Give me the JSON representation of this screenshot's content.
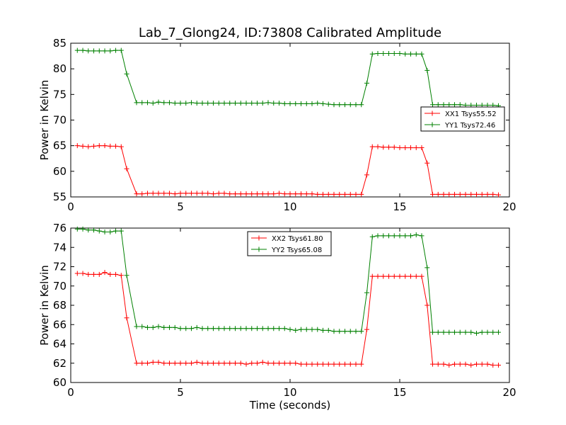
{
  "figure": {
    "title": "Lab_7_Glong24, ID:73808 Calibrated Amplitude",
    "xlabel": "Time (seconds)"
  },
  "chart_data": [
    {
      "type": "line",
      "ylabel": "Power in Kelvin",
      "xlim": [
        0,
        20
      ],
      "ylim": [
        55,
        85
      ],
      "xticks": [
        0,
        5,
        10,
        15,
        20
      ],
      "yticks": [
        55,
        60,
        65,
        70,
        75,
        80,
        85
      ],
      "legend_position": "center-right",
      "series": [
        {
          "name": "XX1 Tsys55.52",
          "color": "#ff0000",
          "x": [
            0.3,
            0.55,
            0.8,
            1.05,
            1.3,
            1.55,
            1.8,
            2.05,
            2.3,
            2.55,
            3.0,
            3.25,
            3.5,
            3.75,
            4.0,
            4.25,
            4.5,
            4.75,
            5.0,
            5.25,
            5.5,
            5.75,
            6.0,
            6.25,
            6.5,
            6.75,
            7.0,
            7.25,
            7.5,
            7.75,
            8.0,
            8.25,
            8.5,
            8.75,
            9.0,
            9.25,
            9.5,
            9.75,
            10.0,
            10.25,
            10.5,
            10.75,
            11.0,
            11.25,
            11.5,
            11.75,
            12.0,
            12.25,
            12.5,
            12.75,
            13.0,
            13.25,
            13.5,
            13.75,
            14.0,
            14.25,
            14.5,
            14.75,
            15.0,
            15.25,
            15.5,
            15.75,
            16.0,
            16.25,
            16.5,
            16.75,
            17.0,
            17.25,
            17.5,
            17.75,
            18.0,
            18.25,
            18.5,
            18.75,
            19.0,
            19.25,
            19.5
          ],
          "y": [
            65.0,
            64.9,
            64.8,
            64.9,
            65.0,
            65.0,
            64.9,
            64.9,
            64.8,
            60.5,
            55.6,
            55.6,
            55.7,
            55.7,
            55.7,
            55.7,
            55.7,
            55.6,
            55.7,
            55.7,
            55.7,
            55.7,
            55.7,
            55.7,
            55.6,
            55.7,
            55.7,
            55.6,
            55.6,
            55.6,
            55.6,
            55.6,
            55.6,
            55.6,
            55.6,
            55.6,
            55.7,
            55.6,
            55.6,
            55.6,
            55.6,
            55.6,
            55.6,
            55.5,
            55.5,
            55.5,
            55.5,
            55.5,
            55.5,
            55.5,
            55.5,
            55.5,
            59.3,
            64.8,
            64.8,
            64.7,
            64.7,
            64.7,
            64.6,
            64.6,
            64.6,
            64.6,
            64.6,
            61.6,
            55.5,
            55.5,
            55.5,
            55.5,
            55.5,
            55.5,
            55.5,
            55.5,
            55.5,
            55.5,
            55.5,
            55.5,
            55.4
          ]
        },
        {
          "name": "YY1 Tsys72.46",
          "color": "#008000",
          "x": [
            0.3,
            0.55,
            0.8,
            1.05,
            1.3,
            1.55,
            1.8,
            2.05,
            2.3,
            2.55,
            3.0,
            3.25,
            3.5,
            3.75,
            4.0,
            4.25,
            4.5,
            4.75,
            5.0,
            5.25,
            5.5,
            5.75,
            6.0,
            6.25,
            6.5,
            6.75,
            7.0,
            7.25,
            7.5,
            7.75,
            8.0,
            8.25,
            8.5,
            8.75,
            9.0,
            9.25,
            9.5,
            9.75,
            10.0,
            10.25,
            10.5,
            10.75,
            11.0,
            11.25,
            11.5,
            11.75,
            12.0,
            12.25,
            12.5,
            12.75,
            13.0,
            13.25,
            13.5,
            13.75,
            14.0,
            14.25,
            14.5,
            14.75,
            15.0,
            15.25,
            15.5,
            15.75,
            16.0,
            16.25,
            16.5,
            16.75,
            17.0,
            17.25,
            17.5,
            17.75,
            18.0,
            18.25,
            18.5,
            18.75,
            19.0,
            19.25,
            19.5
          ],
          "y": [
            83.6,
            83.6,
            83.5,
            83.5,
            83.5,
            83.5,
            83.5,
            83.6,
            83.6,
            79.0,
            73.4,
            73.4,
            73.4,
            73.3,
            73.5,
            73.4,
            73.4,
            73.3,
            73.3,
            73.3,
            73.4,
            73.3,
            73.3,
            73.3,
            73.3,
            73.3,
            73.3,
            73.3,
            73.3,
            73.3,
            73.3,
            73.3,
            73.3,
            73.3,
            73.4,
            73.3,
            73.3,
            73.2,
            73.2,
            73.2,
            73.2,
            73.2,
            73.2,
            73.3,
            73.2,
            73.1,
            73.0,
            73.0,
            73.0,
            73.0,
            73.0,
            73.0,
            77.2,
            82.9,
            83.0,
            83.0,
            83.0,
            83.0,
            83.0,
            82.9,
            82.9,
            82.9,
            82.9,
            79.7,
            73.0,
            73.0,
            73.0,
            73.0,
            73.0,
            73.0,
            72.9,
            72.9,
            72.9,
            72.9,
            72.9,
            72.9,
            72.8
          ]
        }
      ]
    },
    {
      "type": "line",
      "ylabel": "Power in Kelvin",
      "xlim": [
        0,
        20
      ],
      "ylim": [
        60,
        76
      ],
      "xticks": [
        0,
        5,
        10,
        15,
        20
      ],
      "yticks": [
        60,
        62,
        64,
        66,
        68,
        70,
        72,
        74,
        76
      ],
      "legend_position": "top-center",
      "series": [
        {
          "name": "XX2 Tsys61.80",
          "color": "#ff0000",
          "x": [
            0.3,
            0.55,
            0.8,
            1.05,
            1.3,
            1.55,
            1.8,
            2.05,
            2.3,
            2.55,
            3.0,
            3.25,
            3.5,
            3.75,
            4.0,
            4.25,
            4.5,
            4.75,
            5.0,
            5.25,
            5.5,
            5.75,
            6.0,
            6.25,
            6.5,
            6.75,
            7.0,
            7.25,
            7.5,
            7.75,
            8.0,
            8.25,
            8.5,
            8.75,
            9.0,
            9.25,
            9.5,
            9.75,
            10.0,
            10.25,
            10.5,
            10.75,
            11.0,
            11.25,
            11.5,
            11.75,
            12.0,
            12.25,
            12.5,
            12.75,
            13.0,
            13.25,
            13.5,
            13.75,
            14.0,
            14.25,
            14.5,
            14.75,
            15.0,
            15.25,
            15.5,
            15.75,
            16.0,
            16.25,
            16.5,
            16.75,
            17.0,
            17.25,
            17.5,
            17.75,
            18.0,
            18.25,
            18.5,
            18.75,
            19.0,
            19.25,
            19.5
          ],
          "y": [
            71.3,
            71.3,
            71.2,
            71.2,
            71.2,
            71.4,
            71.2,
            71.2,
            71.1,
            66.7,
            62.0,
            62.0,
            62.0,
            62.1,
            62.1,
            62.0,
            62.0,
            62.0,
            62.0,
            62.0,
            62.0,
            62.1,
            62.0,
            62.0,
            62.0,
            62.0,
            62.0,
            62.0,
            62.0,
            62.0,
            61.9,
            62.0,
            62.0,
            62.1,
            62.0,
            62.0,
            62.0,
            62.0,
            62.0,
            62.0,
            61.9,
            61.9,
            61.9,
            61.9,
            61.9,
            61.9,
            61.9,
            61.9,
            61.9,
            61.9,
            61.9,
            61.9,
            65.5,
            71.0,
            71.0,
            71.0,
            71.0,
            71.0,
            71.0,
            71.0,
            71.0,
            71.0,
            71.0,
            68.0,
            61.9,
            61.9,
            61.9,
            61.8,
            61.9,
            61.9,
            61.9,
            61.8,
            61.9,
            61.9,
            61.9,
            61.8,
            61.8
          ]
        },
        {
          "name": "YY2 Tsys65.08",
          "color": "#008000",
          "x": [
            0.3,
            0.55,
            0.8,
            1.05,
            1.3,
            1.55,
            1.8,
            2.05,
            2.3,
            2.55,
            3.0,
            3.25,
            3.5,
            3.75,
            4.0,
            4.25,
            4.5,
            4.75,
            5.0,
            5.25,
            5.5,
            5.75,
            6.0,
            6.25,
            6.5,
            6.75,
            7.0,
            7.25,
            7.5,
            7.75,
            8.0,
            8.25,
            8.5,
            8.75,
            9.0,
            9.25,
            9.5,
            9.75,
            10.0,
            10.25,
            10.5,
            10.75,
            11.0,
            11.25,
            11.5,
            11.75,
            12.0,
            12.25,
            12.5,
            12.75,
            13.0,
            13.25,
            13.5,
            13.75,
            14.0,
            14.25,
            14.5,
            14.75,
            15.0,
            15.25,
            15.5,
            15.75,
            16.0,
            16.25,
            16.5,
            16.75,
            17.0,
            17.25,
            17.5,
            17.75,
            18.0,
            18.25,
            18.5,
            18.75,
            19.0,
            19.25,
            19.5
          ],
          "y": [
            75.9,
            75.9,
            75.8,
            75.8,
            75.7,
            75.6,
            75.6,
            75.7,
            75.7,
            71.1,
            65.8,
            65.8,
            65.7,
            65.7,
            65.8,
            65.7,
            65.7,
            65.7,
            65.6,
            65.6,
            65.6,
            65.7,
            65.6,
            65.6,
            65.6,
            65.6,
            65.6,
            65.6,
            65.6,
            65.6,
            65.6,
            65.6,
            65.6,
            65.6,
            65.6,
            65.6,
            65.6,
            65.6,
            65.5,
            65.4,
            65.5,
            65.5,
            65.5,
            65.5,
            65.4,
            65.4,
            65.3,
            65.3,
            65.3,
            65.3,
            65.3,
            65.3,
            69.3,
            75.1,
            75.2,
            75.2,
            75.2,
            75.2,
            75.2,
            75.2,
            75.2,
            75.3,
            75.2,
            71.9,
            65.2,
            65.2,
            65.2,
            65.2,
            65.2,
            65.2,
            65.2,
            65.2,
            65.1,
            65.2,
            65.2,
            65.2,
            65.2
          ]
        }
      ]
    }
  ]
}
